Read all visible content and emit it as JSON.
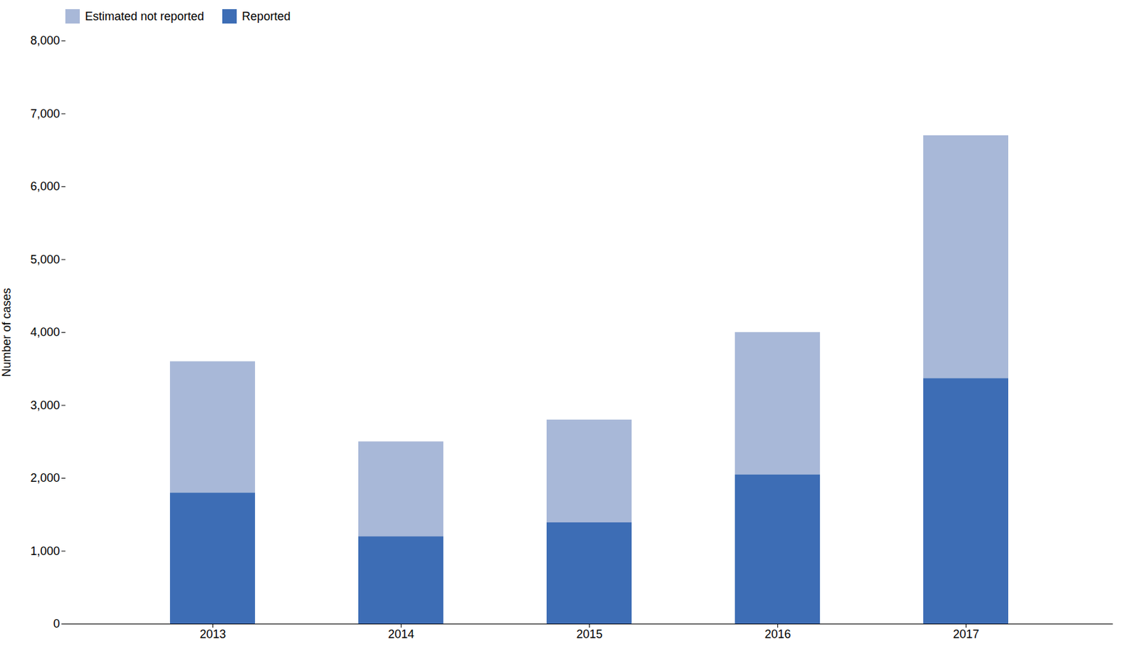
{
  "chart_data": {
    "type": "bar",
    "stacked": true,
    "categories": [
      "2013",
      "2014",
      "2015",
      "2016",
      "2017"
    ],
    "series": [
      {
        "name": "Reported",
        "color": "#3d6db5",
        "values": [
          1800,
          1200,
          1390,
          2050,
          3370
        ]
      },
      {
        "name": "Estimated not reported",
        "color": "#a8b8d8",
        "values": [
          1800,
          1300,
          1410,
          1950,
          3330
        ]
      }
    ],
    "ylabel": "Number of cases",
    "ylim": [
      0,
      8000
    ],
    "yticks": [
      0,
      {
        "value": 1000,
        "label": "1,000"
      },
      {
        "value": 2000,
        "label": "2,000"
      },
      {
        "value": 3000,
        "label": "3,000"
      },
      {
        "value": 4000,
        "label": "4,000"
      },
      {
        "value": 5000,
        "label": "5,000"
      },
      {
        "value": 6000,
        "label": "6,000"
      },
      {
        "value": 7000,
        "label": "7,000"
      },
      {
        "value": 8000,
        "label": "8,000"
      }
    ],
    "legend": "upper left",
    "grid": false
  }
}
